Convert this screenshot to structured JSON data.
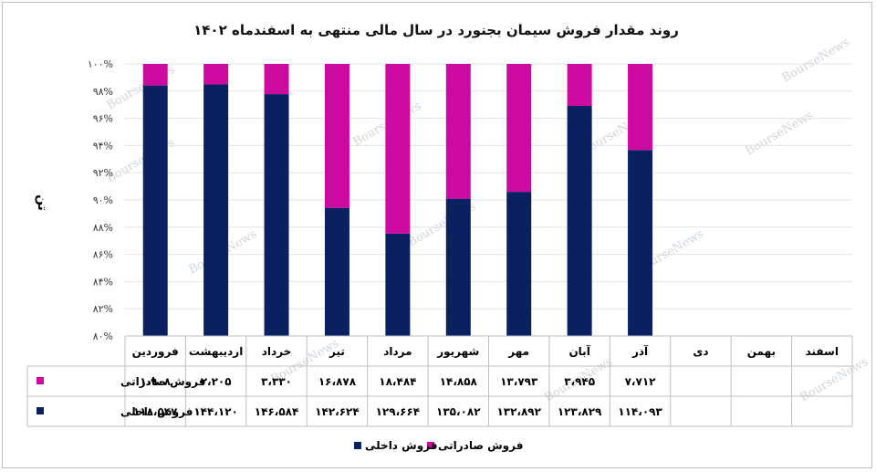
{
  "chart_data": {
    "type": "bar",
    "stacked": "percent",
    "title": "روند مقدار فروش سیمان بجنورد در سال مالی منتهی به اسفندماه ۱۴۰۲",
    "ylabel": "تن",
    "ylim": [
      0.8,
      1.0
    ],
    "yticks": [
      "۸۰%",
      "۸۲%",
      "۸۴%",
      "۸۶%",
      "۸۸%",
      "۹۰%",
      "۹۲%",
      "۹۴%",
      "۹۶%",
      "۹۸%",
      "۱۰۰%"
    ],
    "legend_position": "bottom",
    "categories": [
      "فروردین",
      "اردیبهشت",
      "خرداد",
      "تیر",
      "مرداد",
      "شهریور",
      "مهر",
      "آبان",
      "آذر",
      "دی",
      "بهمن",
      "اسفند"
    ],
    "series": [
      {
        "name": "فروش داخلی",
        "color": "#0a2060",
        "values": [
          118547,
          144120,
          146584,
          142624,
          129664,
          135082,
          132892,
          123829,
          114093,
          null,
          null,
          null
        ],
        "labels": [
          "۱۱۸،۵۴۷",
          "۱۴۴،۱۲۰",
          "۱۴۶،۵۸۴",
          "۱۴۲،۶۲۴",
          "۱۲۹،۶۶۴",
          "۱۳۵،۰۸۲",
          "۱۳۲،۸۹۲",
          "۱۲۳،۸۲۹",
          "۱۱۴،۰۹۳",
          "",
          "",
          ""
        ]
      },
      {
        "name": "فروش صادراتی",
        "color": "#cc0aa0",
        "values": [
          1908,
          2205,
          3330,
          16878,
          18484,
          14858,
          13793,
          3945,
          7712,
          null,
          null,
          null
        ],
        "labels": [
          "۱،۹۰۸",
          "۲،۲۰۵",
          "۳،۳۳۰",
          "۱۶،۸۷۸",
          "۱۸،۴۸۴",
          "۱۴،۸۵۸",
          "۱۳،۷۹۳",
          "۳،۹۴۵",
          "۷،۷۱۲",
          "",
          "",
          ""
        ]
      }
    ]
  },
  "watermark": "BourseNews"
}
